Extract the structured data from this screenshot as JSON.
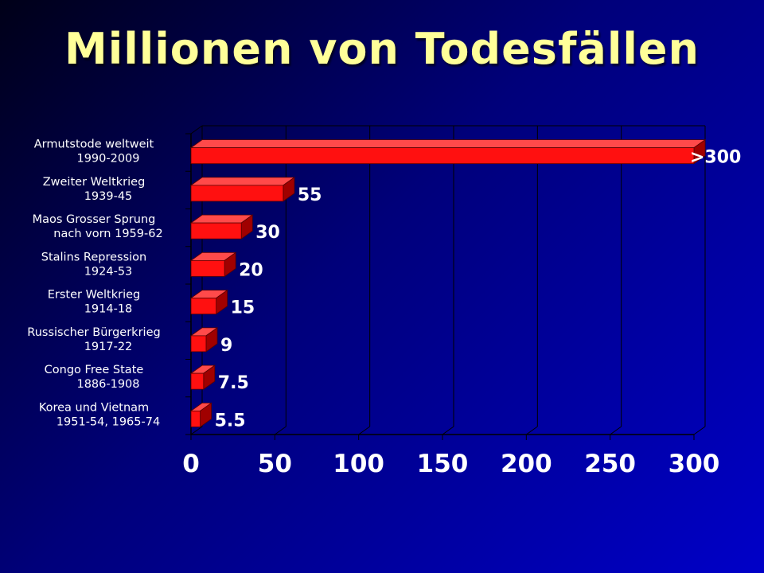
{
  "title": "Millionen von Todesfällen",
  "colors": {
    "bar_front": "#ff1010",
    "bar_top": "#ff4a4a",
    "bar_side": "#a00000",
    "title": "#ffff99",
    "text": "#ffffff"
  },
  "chart_data": {
    "type": "bar",
    "orientation": "horizontal",
    "title": "Millionen von Todesfällen",
    "categories": [
      [
        "Armutstode weltweit",
        "1990-2009"
      ],
      [
        "Zweiter Weltkrieg",
        "1939-45"
      ],
      [
        "Maos Grosser Sprung",
        "nach vorn 1959-62"
      ],
      [
        "Stalins Repression",
        "1924-53"
      ],
      [
        "Erster Weltkrieg",
        "1914-18"
      ],
      [
        "Russischer Bürgerkrieg",
        "1917-22"
      ],
      [
        "Congo Free State",
        "1886-1908"
      ],
      [
        "Korea und Vietnam",
        "1951-54, 1965-74"
      ]
    ],
    "values": [
      300,
      55,
      30,
      20,
      15,
      9,
      7.5,
      5.5
    ],
    "value_labels": [
      ">300",
      "55",
      "30",
      "20",
      "15",
      "9",
      "7.5",
      "5.5"
    ],
    "xlim": [
      0,
      300
    ],
    "xticks": [
      "0",
      "50",
      "100",
      "150",
      "200",
      "250",
      "300"
    ],
    "grid": true,
    "xlabel": "",
    "ylabel": ""
  }
}
